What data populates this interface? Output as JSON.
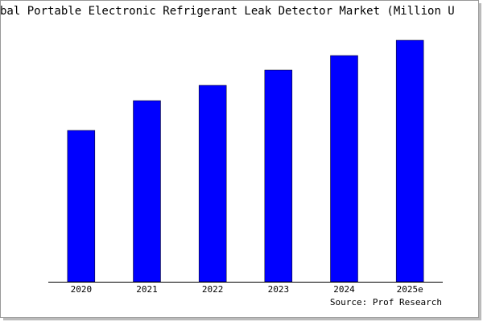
{
  "chart_data": {
    "type": "bar",
    "title": "bal Portable Electronic Refrigerant Leak Detector Market (Million U",
    "categories": [
      "2020",
      "2021",
      "2022",
      "2023",
      "2024",
      "2025e"
    ],
    "values": [
      188,
      225,
      244,
      263,
      281,
      300
    ],
    "color": "#0000ff",
    "ylim": [
      0,
      300
    ],
    "source": "Source: Prof Research"
  }
}
